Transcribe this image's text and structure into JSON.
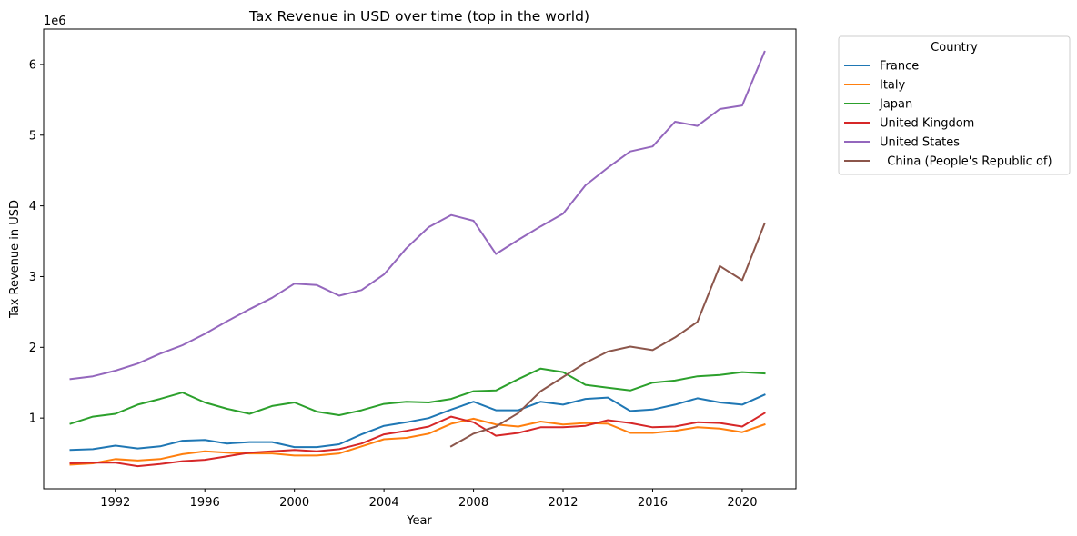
{
  "chart_data": {
    "type": "line",
    "title": "Tax Revenue in USD over time (top in the world)",
    "xlabel": "Year",
    "ylabel": "Tax Revenue in USD",
    "y_offset_label": "1e6",
    "y_multiplier": 1000000,
    "xlim": [
      1988.8,
      2022.4
    ],
    "ylim": [
      0,
      6500000
    ],
    "x_ticks": [
      1992,
      1996,
      2000,
      2004,
      2008,
      2012,
      2016,
      2020
    ],
    "y_ticks": [
      1000000,
      2000000,
      3000000,
      4000000,
      5000000,
      6000000
    ],
    "y_tick_labels": [
      "1",
      "2",
      "3",
      "4",
      "5",
      "6"
    ],
    "grid": false,
    "legend": {
      "title": "Country",
      "placement": "outside-top-right"
    },
    "series": [
      {
        "name": "France",
        "color": "#1f77b4",
        "x": [
          1990,
          1991,
          1992,
          1993,
          1994,
          1995,
          1996,
          1997,
          1998,
          1999,
          2000,
          2001,
          2002,
          2003,
          2004,
          2005,
          2006,
          2007,
          2008,
          2009,
          2010,
          2011,
          2012,
          2013,
          2014,
          2015,
          2016,
          2017,
          2018,
          2019,
          2020,
          2021
        ],
        "values": [
          550000,
          560000,
          610000,
          570000,
          600000,
          680000,
          690000,
          640000,
          660000,
          660000,
          590000,
          590000,
          630000,
          770000,
          890000,
          940000,
          1000000,
          1120000,
          1230000,
          1110000,
          1110000,
          1230000,
          1190000,
          1270000,
          1290000,
          1100000,
          1120000,
          1190000,
          1280000,
          1220000,
          1190000,
          1330000
        ]
      },
      {
        "name": "Italy",
        "color": "#ff7f0e",
        "x": [
          1990,
          1991,
          1992,
          1993,
          1994,
          1995,
          1996,
          1997,
          1998,
          1999,
          2000,
          2001,
          2002,
          2003,
          2004,
          2005,
          2006,
          2007,
          2008,
          2009,
          2010,
          2011,
          2012,
          2013,
          2014,
          2015,
          2016,
          2017,
          2018,
          2019,
          2020,
          2021
        ],
        "values": [
          340000,
          360000,
          420000,
          400000,
          420000,
          490000,
          530000,
          510000,
          500000,
          500000,
          470000,
          470000,
          500000,
          600000,
          700000,
          720000,
          780000,
          920000,
          990000,
          910000,
          880000,
          950000,
          910000,
          930000,
          920000,
          790000,
          790000,
          820000,
          870000,
          850000,
          800000,
          910000
        ]
      },
      {
        "name": "Japan",
        "color": "#2ca02c",
        "x": [
          1990,
          1991,
          1992,
          1993,
          1994,
          1995,
          1996,
          1997,
          1998,
          1999,
          2000,
          2001,
          2002,
          2003,
          2004,
          2005,
          2006,
          2007,
          2008,
          2009,
          2010,
          2011,
          2012,
          2013,
          2014,
          2015,
          2016,
          2017,
          2018,
          2019,
          2020,
          2021
        ],
        "values": [
          920000,
          1020000,
          1060000,
          1190000,
          1270000,
          1360000,
          1220000,
          1130000,
          1060000,
          1170000,
          1220000,
          1090000,
          1040000,
          1110000,
          1200000,
          1230000,
          1220000,
          1270000,
          1380000,
          1390000,
          1550000,
          1700000,
          1650000,
          1470000,
          1430000,
          1390000,
          1500000,
          1530000,
          1590000,
          1610000,
          1650000,
          1630000
        ]
      },
      {
        "name": "United Kingdom",
        "color": "#d62728",
        "x": [
          1990,
          1991,
          1992,
          1993,
          1994,
          1995,
          1996,
          1997,
          1998,
          1999,
          2000,
          2001,
          2002,
          2003,
          2004,
          2005,
          2006,
          2007,
          2008,
          2009,
          2010,
          2011,
          2012,
          2013,
          2014,
          2015,
          2016,
          2017,
          2018,
          2019,
          2020,
          2021
        ],
        "values": [
          360000,
          370000,
          370000,
          320000,
          350000,
          390000,
          410000,
          460000,
          510000,
          530000,
          550000,
          530000,
          560000,
          640000,
          770000,
          820000,
          880000,
          1020000,
          940000,
          750000,
          790000,
          870000,
          870000,
          890000,
          970000,
          930000,
          870000,
          880000,
          940000,
          930000,
          880000,
          1070000
        ]
      },
      {
        "name": "United States",
        "color": "#9467bd",
        "x": [
          1990,
          1991,
          1992,
          1993,
          1994,
          1995,
          1996,
          1997,
          1998,
          1999,
          2000,
          2001,
          2002,
          2003,
          2004,
          2005,
          2006,
          2007,
          2008,
          2009,
          2010,
          2011,
          2012,
          2013,
          2014,
          2015,
          2016,
          2017,
          2018,
          2019,
          2020,
          2021
        ],
        "values": [
          1550000,
          1590000,
          1670000,
          1770000,
          1910000,
          2030000,
          2190000,
          2370000,
          2540000,
          2700000,
          2900000,
          2880000,
          2730000,
          2810000,
          3030000,
          3400000,
          3700000,
          3870000,
          3790000,
          3320000,
          3520000,
          3710000,
          3890000,
          4290000,
          4540000,
          4770000,
          4840000,
          5190000,
          5130000,
          5370000,
          5420000,
          6180000
        ]
      },
      {
        "name": "  China (People's Republic of)",
        "color": "#8c564b",
        "x": [
          2007,
          2008,
          2009,
          2010,
          2011,
          2012,
          2013,
          2014,
          2015,
          2016,
          2017,
          2018,
          2019,
          2020,
          2021
        ],
        "values": [
          600000,
          780000,
          880000,
          1070000,
          1380000,
          1580000,
          1780000,
          1940000,
          2010000,
          1960000,
          2140000,
          2360000,
          3150000,
          2950000,
          3750000
        ]
      }
    ]
  }
}
